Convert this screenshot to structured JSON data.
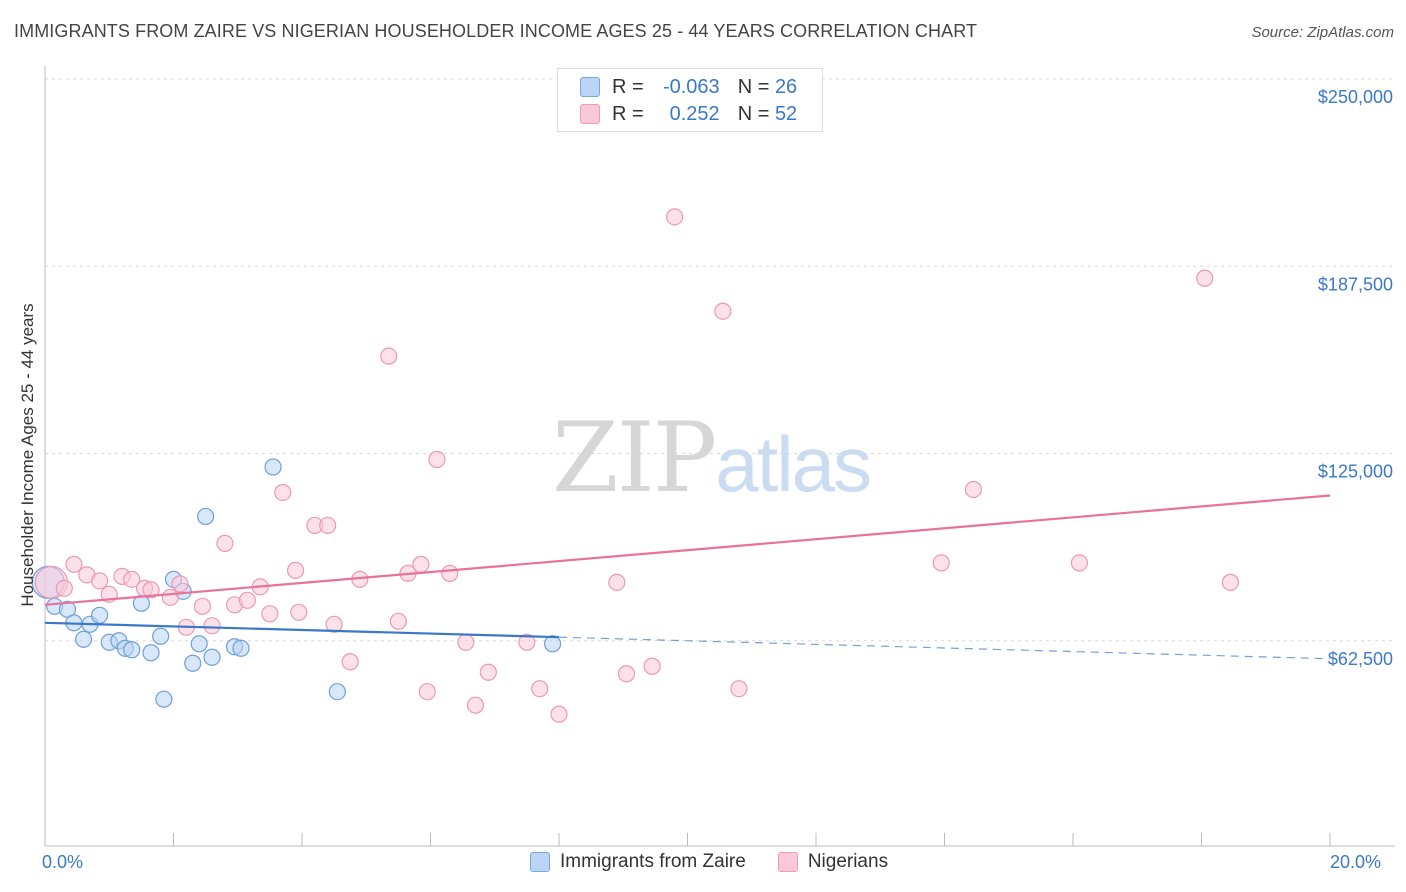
{
  "title": "IMMIGRANTS FROM ZAIRE VS NIGERIAN HOUSEHOLDER INCOME AGES 25 - 44 YEARS CORRELATION CHART",
  "source": "Source: ZipAtlas.com",
  "watermark": {
    "zip": "ZIP",
    "atlas": "atlas"
  },
  "legend": {
    "rows": [
      {
        "r_label": "R =",
        "r_value": "-0.063",
        "n_label": "N =",
        "n_value": "26"
      },
      {
        "r_label": "R =",
        "r_value": "0.252",
        "n_label": "N =",
        "n_value": "52"
      }
    ]
  },
  "bottom_legend": {
    "series1": "Immigrants from Zaire",
    "series2": "Nigerians"
  },
  "colors": {
    "blue": "#3a78c8",
    "blue_fill": "#b9d4f5",
    "pink": "#e8729a",
    "pink_fill": "#fbc8d8",
    "grid": "#d8d8d8"
  },
  "chart_data": {
    "type": "scatter",
    "title": "IMMIGRANTS FROM ZAIRE VS NIGERIAN HOUSEHOLDER INCOME AGES 25 - 44 YEARS CORRELATION CHART",
    "xlabel": "",
    "ylabel": "Householder Income Ages 25 - 44 years",
    "xlim": [
      0,
      20
    ],
    "ylim": [
      0,
      262000
    ],
    "x_tick_labels": [
      "0.0%",
      "20.0%"
    ],
    "y_ticks": [
      62500,
      125000,
      187500,
      250000
    ],
    "y_tick_labels": [
      "$62,500",
      "$125,000",
      "$187,500",
      "$250,000"
    ],
    "series": [
      {
        "name": "Immigrants from Zaire",
        "r": -0.063,
        "n": 26,
        "trend": {
          "x0": 0,
          "y0": 74500,
          "x1": 20,
          "y1": 62500,
          "solid_until": 8.0
        },
        "points": [
          {
            "x": 0.05,
            "y": 88000,
            "big": true
          },
          {
            "x": 0.15,
            "y": 80000
          },
          {
            "x": 0.35,
            "y": 79000
          },
          {
            "x": 0.45,
            "y": 74500
          },
          {
            "x": 0.7,
            "y": 74000
          },
          {
            "x": 0.85,
            "y": 77000
          },
          {
            "x": 0.6,
            "y": 69000
          },
          {
            "x": 1.0,
            "y": 68000
          },
          {
            "x": 1.15,
            "y": 68500
          },
          {
            "x": 1.25,
            "y": 66000
          },
          {
            "x": 1.35,
            "y": 65500
          },
          {
            "x": 1.5,
            "y": 81000
          },
          {
            "x": 1.65,
            "y": 64500
          },
          {
            "x": 1.8,
            "y": 70000
          },
          {
            "x": 1.85,
            "y": 49000
          },
          {
            "x": 2.0,
            "y": 89000
          },
          {
            "x": 2.15,
            "y": 85000
          },
          {
            "x": 2.3,
            "y": 61000
          },
          {
            "x": 2.4,
            "y": 67500
          },
          {
            "x": 2.5,
            "y": 110000
          },
          {
            "x": 2.6,
            "y": 63000
          },
          {
            "x": 2.95,
            "y": 66500
          },
          {
            "x": 3.05,
            "y": 66000
          },
          {
            "x": 3.55,
            "y": 126500
          },
          {
            "x": 4.55,
            "y": 51500
          },
          {
            "x": 7.9,
            "y": 67500
          }
        ]
      },
      {
        "name": "Nigerians",
        "r": 0.252,
        "n": 52,
        "trend": {
          "x0": 0,
          "y0": 80500,
          "x1": 20,
          "y1": 117000
        },
        "points": [
          {
            "x": 0.1,
            "y": 88000,
            "big": true
          },
          {
            "x": 0.45,
            "y": 94000
          },
          {
            "x": 0.65,
            "y": 90500
          },
          {
            "x": 0.85,
            "y": 88500
          },
          {
            "x": 1.0,
            "y": 84000
          },
          {
            "x": 1.2,
            "y": 90000
          },
          {
            "x": 1.35,
            "y": 89000
          },
          {
            "x": 1.55,
            "y": 86000
          },
          {
            "x": 1.65,
            "y": 85500
          },
          {
            "x": 1.95,
            "y": 83000
          },
          {
            "x": 2.1,
            "y": 87500
          },
          {
            "x": 2.2,
            "y": 73000
          },
          {
            "x": 2.45,
            "y": 80000
          },
          {
            "x": 2.6,
            "y": 73500
          },
          {
            "x": 2.8,
            "y": 101000
          },
          {
            "x": 2.95,
            "y": 80500
          },
          {
            "x": 3.15,
            "y": 82000
          },
          {
            "x": 3.35,
            "y": 86500
          },
          {
            "x": 3.5,
            "y": 77500
          },
          {
            "x": 3.7,
            "y": 118000
          },
          {
            "x": 3.9,
            "y": 92000
          },
          {
            "x": 3.95,
            "y": 78000
          },
          {
            "x": 4.2,
            "y": 107000
          },
          {
            "x": 4.4,
            "y": 107000
          },
          {
            "x": 4.5,
            "y": 74000
          },
          {
            "x": 4.75,
            "y": 61500
          },
          {
            "x": 4.9,
            "y": 89000
          },
          {
            "x": 5.35,
            "y": 163500
          },
          {
            "x": 5.5,
            "y": 75000
          },
          {
            "x": 5.65,
            "y": 91000
          },
          {
            "x": 5.85,
            "y": 94000
          },
          {
            "x": 5.95,
            "y": 51500
          },
          {
            "x": 6.1,
            "y": 129000
          },
          {
            "x": 6.3,
            "y": 91000
          },
          {
            "x": 6.55,
            "y": 68000
          },
          {
            "x": 6.7,
            "y": 47000
          },
          {
            "x": 6.9,
            "y": 58000
          },
          {
            "x": 7.5,
            "y": 68000
          },
          {
            "x": 7.7,
            "y": 52500
          },
          {
            "x": 8.0,
            "y": 44000
          },
          {
            "x": 8.9,
            "y": 88000
          },
          {
            "x": 9.05,
            "y": 57500
          },
          {
            "x": 9.45,
            "y": 60000
          },
          {
            "x": 9.8,
            "y": 210000
          },
          {
            "x": 10.55,
            "y": 178500
          },
          {
            "x": 10.8,
            "y": 52500
          },
          {
            "x": 13.95,
            "y": 94500
          },
          {
            "x": 14.45,
            "y": 119000
          },
          {
            "x": 16.1,
            "y": 94500
          },
          {
            "x": 18.05,
            "y": 189500
          },
          {
            "x": 18.45,
            "y": 88000
          },
          {
            "x": 0.3,
            "y": 86000
          }
        ]
      }
    ]
  }
}
